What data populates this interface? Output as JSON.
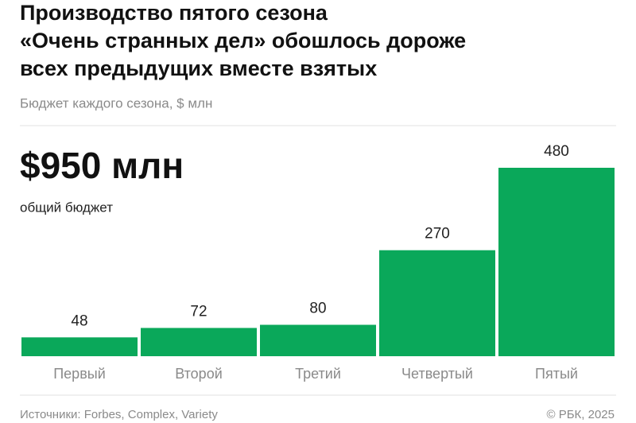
{
  "chart_data": {
    "type": "bar",
    "title": [
      "Производство пятого сезона",
      "«Очень странных дел» обошлось дороже",
      "всех предыдущих вместе взятых"
    ],
    "subtitle": "Бюджет каждого сезона, $ млн",
    "annotation": "$950 млн",
    "annotation_note": "общий бюджет",
    "categories": [
      "Первый",
      "Второй",
      "Третий",
      "Четвертый",
      "Пятый"
    ],
    "values": [
      48,
      72,
      80,
      270,
      480
    ],
    "color": "#0aa85a",
    "source": "Источники: Forbes, Complex, Variety",
    "credit": "© РБК, 2025"
  }
}
